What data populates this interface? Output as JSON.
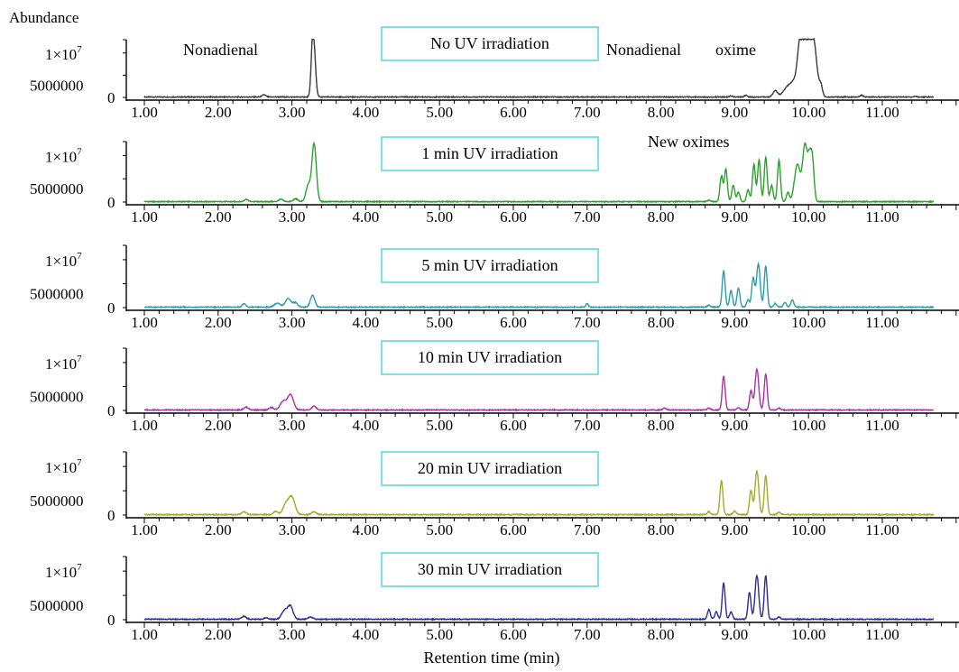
{
  "chart_data": {
    "type": "line",
    "title": "",
    "ylabel": "Abundance",
    "xlabel": "Retention time (min)",
    "xlim": [
      0.6,
      12.25
    ],
    "ylim": [
      0,
      13000000
    ],
    "x_ticks": [
      "1.00",
      "2.00",
      "3.00",
      "4.00",
      "5.00",
      "6.00",
      "7.00",
      "8.00",
      "9.00",
      "10.00",
      "11.00"
    ],
    "y_tick_top_base": "1×10",
    "y_tick_top_exp": "7",
    "y_tick_mid": "5000000",
    "y_tick_zero": "0",
    "label_box_color": "#5fd8e4",
    "panels": [
      {
        "label": "No UV irradiation",
        "color": "#3a3a3a",
        "annotations": [
          "Nonadienal",
          "Nonadienal",
          "oxime"
        ],
        "peaks": [
          {
            "x": 2.62,
            "h": 500000,
            "w": 0.025
          },
          {
            "x": 3.28,
            "h": 12500000,
            "w": 0.02
          },
          {
            "x": 3.31,
            "h": 6000000,
            "w": 0.02
          },
          {
            "x": 8.95,
            "h": 250000,
            "w": 0.02
          },
          {
            "x": 9.15,
            "h": 400000,
            "w": 0.02
          },
          {
            "x": 9.55,
            "h": 1400000,
            "w": 0.03
          },
          {
            "x": 9.72,
            "h": 2200000,
            "w": 0.06
          },
          {
            "x": 9.82,
            "h": 3000000,
            "w": 0.05
          },
          {
            "x": 9.87,
            "h": 6000000,
            "w": 0.03
          },
          {
            "x": 9.91,
            "h": 10000000,
            "w": 0.03
          },
          {
            "x": 9.98,
            "h": 13000000,
            "w": 0.04
          },
          {
            "x": 10.06,
            "h": 13000000,
            "w": 0.05
          },
          {
            "x": 10.17,
            "h": 2000000,
            "w": 0.02
          },
          {
            "x": 10.72,
            "h": 400000,
            "w": 0.02
          },
          {
            "x": 11.45,
            "h": 150000,
            "w": 0.02
          }
        ]
      },
      {
        "label": "1 min UV irradiation",
        "color": "#2ea02e",
        "annotations": [
          "New  oximes"
        ],
        "peaks": [
          {
            "x": 2.38,
            "h": 500000,
            "w": 0.025
          },
          {
            "x": 2.85,
            "h": 500000,
            "w": 0.03
          },
          {
            "x": 3.05,
            "h": 600000,
            "w": 0.03
          },
          {
            "x": 3.22,
            "h": 3500000,
            "w": 0.03
          },
          {
            "x": 3.3,
            "h": 12500000,
            "w": 0.03
          },
          {
            "x": 8.65,
            "h": 300000,
            "w": 0.02
          },
          {
            "x": 8.82,
            "h": 5500000,
            "w": 0.02
          },
          {
            "x": 8.88,
            "h": 7000000,
            "w": 0.02
          },
          {
            "x": 8.98,
            "h": 3500000,
            "w": 0.02
          },
          {
            "x": 9.05,
            "h": 2000000,
            "w": 0.02
          },
          {
            "x": 9.18,
            "h": 2500000,
            "w": 0.02
          },
          {
            "x": 9.26,
            "h": 8000000,
            "w": 0.02
          },
          {
            "x": 9.33,
            "h": 9000000,
            "w": 0.02
          },
          {
            "x": 9.42,
            "h": 9500000,
            "w": 0.02
          },
          {
            "x": 9.5,
            "h": 3500000,
            "w": 0.02
          },
          {
            "x": 9.6,
            "h": 9000000,
            "w": 0.02
          },
          {
            "x": 9.72,
            "h": 2000000,
            "w": 0.02
          },
          {
            "x": 9.85,
            "h": 8000000,
            "w": 0.04
          },
          {
            "x": 9.95,
            "h": 11500000,
            "w": 0.03
          },
          {
            "x": 10.02,
            "h": 10000000,
            "w": 0.03
          },
          {
            "x": 10.06,
            "h": 5000000,
            "w": 0.02
          }
        ]
      },
      {
        "label": "5 min UV irradiation",
        "color": "#2a9ea6",
        "annotations": [],
        "peaks": [
          {
            "x": 2.35,
            "h": 700000,
            "w": 0.025
          },
          {
            "x": 2.8,
            "h": 800000,
            "w": 0.04
          },
          {
            "x": 2.95,
            "h": 1800000,
            "w": 0.04
          },
          {
            "x": 3.05,
            "h": 900000,
            "w": 0.03
          },
          {
            "x": 3.28,
            "h": 2500000,
            "w": 0.03
          },
          {
            "x": 7.0,
            "h": 800000,
            "w": 0.015
          },
          {
            "x": 8.65,
            "h": 400000,
            "w": 0.02
          },
          {
            "x": 8.85,
            "h": 7500000,
            "w": 0.02
          },
          {
            "x": 8.95,
            "h": 3500000,
            "w": 0.02
          },
          {
            "x": 9.05,
            "h": 4000000,
            "w": 0.02
          },
          {
            "x": 9.18,
            "h": 1500000,
            "w": 0.02
          },
          {
            "x": 9.25,
            "h": 6000000,
            "w": 0.02
          },
          {
            "x": 9.32,
            "h": 9000000,
            "w": 0.025
          },
          {
            "x": 9.42,
            "h": 8500000,
            "w": 0.02
          },
          {
            "x": 9.55,
            "h": 800000,
            "w": 0.02
          },
          {
            "x": 9.68,
            "h": 1000000,
            "w": 0.02
          },
          {
            "x": 9.78,
            "h": 1500000,
            "w": 0.02
          }
        ]
      },
      {
        "label": "10 min UV irradiation",
        "color": "#b02fa8",
        "annotations": [],
        "peaks": [
          {
            "x": 2.38,
            "h": 600000,
            "w": 0.03
          },
          {
            "x": 2.72,
            "h": 500000,
            "w": 0.03
          },
          {
            "x": 2.88,
            "h": 1800000,
            "w": 0.04
          },
          {
            "x": 2.98,
            "h": 3200000,
            "w": 0.04
          },
          {
            "x": 3.3,
            "h": 800000,
            "w": 0.03
          },
          {
            "x": 8.05,
            "h": 400000,
            "w": 0.02
          },
          {
            "x": 8.65,
            "h": 400000,
            "w": 0.02
          },
          {
            "x": 8.85,
            "h": 7000000,
            "w": 0.02
          },
          {
            "x": 9.05,
            "h": 500000,
            "w": 0.02
          },
          {
            "x": 9.22,
            "h": 4000000,
            "w": 0.02
          },
          {
            "x": 9.3,
            "h": 8500000,
            "w": 0.025
          },
          {
            "x": 9.42,
            "h": 7500000,
            "w": 0.02
          },
          {
            "x": 9.6,
            "h": 400000,
            "w": 0.02
          }
        ]
      },
      {
        "label": "20 min UV irradiation",
        "color": "#a8a82a",
        "annotations": [],
        "peaks": [
          {
            "x": 2.35,
            "h": 600000,
            "w": 0.03
          },
          {
            "x": 2.78,
            "h": 700000,
            "w": 0.03
          },
          {
            "x": 2.92,
            "h": 2200000,
            "w": 0.04
          },
          {
            "x": 3.0,
            "h": 3500000,
            "w": 0.04
          },
          {
            "x": 3.3,
            "h": 600000,
            "w": 0.03
          },
          {
            "x": 8.65,
            "h": 600000,
            "w": 0.02
          },
          {
            "x": 8.82,
            "h": 7000000,
            "w": 0.02
          },
          {
            "x": 9.0,
            "h": 700000,
            "w": 0.02
          },
          {
            "x": 9.22,
            "h": 5000000,
            "w": 0.02
          },
          {
            "x": 9.3,
            "h": 9000000,
            "w": 0.025
          },
          {
            "x": 9.42,
            "h": 8000000,
            "w": 0.02
          },
          {
            "x": 9.6,
            "h": 500000,
            "w": 0.02
          }
        ]
      },
      {
        "label": "30 min UV irradiation",
        "color": "#2b2b9e",
        "annotations": [],
        "peaks": [
          {
            "x": 2.35,
            "h": 600000,
            "w": 0.03
          },
          {
            "x": 2.65,
            "h": 300000,
            "w": 0.03
          },
          {
            "x": 2.9,
            "h": 1800000,
            "w": 0.04
          },
          {
            "x": 2.98,
            "h": 2600000,
            "w": 0.035
          },
          {
            "x": 3.25,
            "h": 500000,
            "w": 0.03
          },
          {
            "x": 8.65,
            "h": 2000000,
            "w": 0.02
          },
          {
            "x": 8.75,
            "h": 1500000,
            "w": 0.02
          },
          {
            "x": 8.85,
            "h": 7500000,
            "w": 0.02
          },
          {
            "x": 8.95,
            "h": 1500000,
            "w": 0.02
          },
          {
            "x": 9.2,
            "h": 5500000,
            "w": 0.02
          },
          {
            "x": 9.3,
            "h": 9000000,
            "w": 0.025
          },
          {
            "x": 9.42,
            "h": 9000000,
            "w": 0.02
          },
          {
            "x": 9.6,
            "h": 500000,
            "w": 0.02
          }
        ]
      }
    ]
  }
}
